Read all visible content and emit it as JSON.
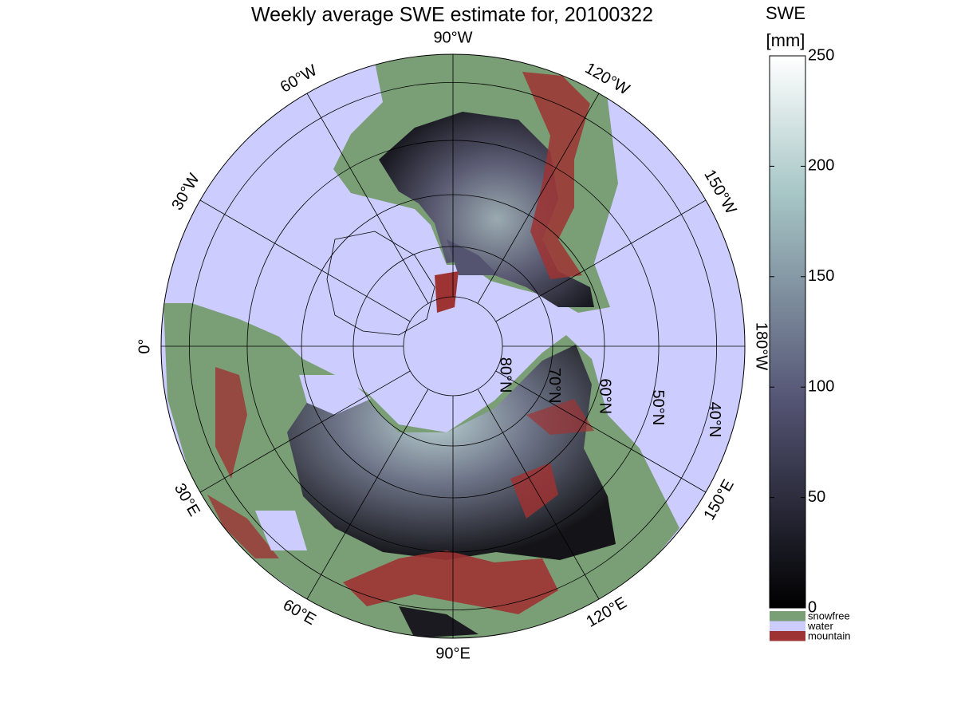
{
  "title": "Weekly average SWE estimate for, 20100322",
  "map": {
    "meridians": [
      {
        "value": -90,
        "label": "90°W"
      },
      {
        "value": -120,
        "label": "120°W"
      },
      {
        "value": -150,
        "label": "150°W"
      },
      {
        "value": 180,
        "label": "180°W"
      },
      {
        "value": 150,
        "label": "150°E"
      },
      {
        "value": 120,
        "label": "120°E"
      },
      {
        "value": 90,
        "label": "90°E"
      },
      {
        "value": 60,
        "label": "60°E"
      },
      {
        "value": 30,
        "label": "30°E"
      },
      {
        "value": 0,
        "label": "0°"
      },
      {
        "value": -30,
        "label": "30°W"
      },
      {
        "value": -60,
        "label": "60°W"
      }
    ],
    "parallels": [
      {
        "value": 80,
        "label": "80°N"
      },
      {
        "value": 70,
        "label": "70°N"
      },
      {
        "value": 60,
        "label": "60°N"
      },
      {
        "value": 50,
        "label": "50°N"
      },
      {
        "value": 40,
        "label": "40°N"
      }
    ]
  },
  "colorbar": {
    "label": "SWE",
    "unit": "[mm]",
    "lim": [
      0,
      250
    ],
    "ticks": [
      0,
      50,
      100,
      150,
      200,
      250
    ]
  },
  "legend": [
    {
      "label": "snowfree",
      "color": "#7a9e76"
    },
    {
      "label": "water",
      "color": "#ccccff"
    },
    {
      "label": "mountain",
      "color": "#9e3333"
    }
  ]
}
